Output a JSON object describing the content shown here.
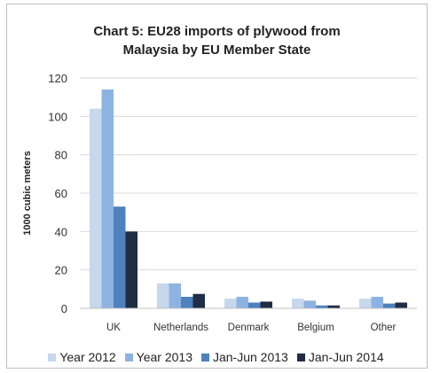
{
  "chart_data": {
    "type": "bar",
    "title_lines": [
      "Chart 5: EU28 imports of plywood from",
      "Malaysia by EU Member State"
    ],
    "ylabel": "1000 cubic meters",
    "xlabel": "",
    "ylim": [
      0,
      120
    ],
    "yticks": [
      0,
      20,
      40,
      60,
      80,
      100,
      120
    ],
    "categories": [
      "UK",
      "Netherlands",
      "Denmark",
      "Belgium",
      "Other"
    ],
    "series": [
      {
        "name": "Year 2012",
        "color": "#c7d7ec",
        "values": [
          104,
          13,
          5,
          5,
          5
        ]
      },
      {
        "name": "Year 2013",
        "color": "#8db3e2",
        "values": [
          114,
          13,
          6,
          4,
          6
        ]
      },
      {
        "name": "Jan-Jun 2013",
        "color": "#4f81bd",
        "values": [
          53,
          6,
          3,
          1.5,
          2.5
        ]
      },
      {
        "name": "Jan-Jun 2014",
        "color": "#1f2d45",
        "values": [
          40,
          7.5,
          3.5,
          1.5,
          3
        ]
      }
    ],
    "grid": true,
    "legend_position": "bottom"
  }
}
